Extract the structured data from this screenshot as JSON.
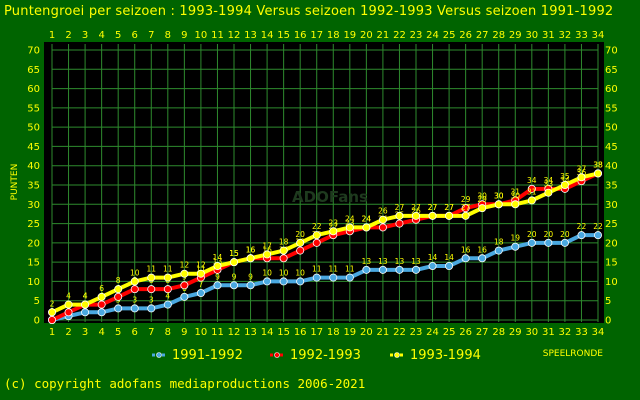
{
  "chart_data": {
    "type": "line",
    "title": "Puntengroei per seizoen : 1993-1994 Versus seizoen 1992-1993 Versus seizoen 1991-1992",
    "xlabel": "SPEELRONDE",
    "ylabel": "PUNTEN",
    "ylim": [
      0,
      70
    ],
    "yticks": [
      0,
      5,
      10,
      15,
      20,
      25,
      30,
      35,
      40,
      45,
      50,
      55,
      60,
      65,
      70
    ],
    "x": [
      1,
      2,
      3,
      4,
      5,
      6,
      7,
      8,
      9,
      10,
      11,
      12,
      13,
      14,
      15,
      16,
      17,
      18,
      19,
      20,
      21,
      22,
      23,
      24,
      25,
      26,
      27,
      28,
      29,
      30,
      31,
      32,
      33,
      34
    ],
    "grid": true,
    "legend": "bottom",
    "watermark": "ADOFans",
    "series": [
      {
        "name": "1991-1992",
        "color": "#4aa8e0",
        "values": [
          0,
          1,
          2,
          2,
          3,
          3,
          3,
          4,
          6,
          7,
          9,
          9,
          9,
          10,
          10,
          10,
          11,
          11,
          11,
          13,
          13,
          13,
          13,
          14,
          14,
          16,
          16,
          18,
          19,
          20,
          20,
          20,
          22,
          22
        ]
      },
      {
        "name": "1992-1993",
        "color": "#ff0000",
        "values": [
          0,
          2,
          4,
          4,
          6,
          8,
          8,
          8,
          9,
          11,
          13,
          15,
          16,
          16,
          16,
          18,
          20,
          22,
          23,
          24,
          24,
          25,
          26,
          27,
          27,
          29,
          30,
          30,
          31,
          34,
          34,
          34,
          36,
          38
        ]
      },
      {
        "name": "1993-1994",
        "color": "#ffff00",
        "values": [
          2,
          4,
          4,
          6,
          8,
          10,
          11,
          11,
          12,
          12,
          14,
          15,
          16,
          17,
          18,
          20,
          22,
          23,
          24,
          24,
          26,
          27,
          27,
          27,
          27,
          27,
          29,
          30,
          30,
          31,
          33,
          35,
          37,
          38
        ]
      }
    ]
  },
  "copyright": "(c) copyright adofans mediaproductions 2006-2021"
}
